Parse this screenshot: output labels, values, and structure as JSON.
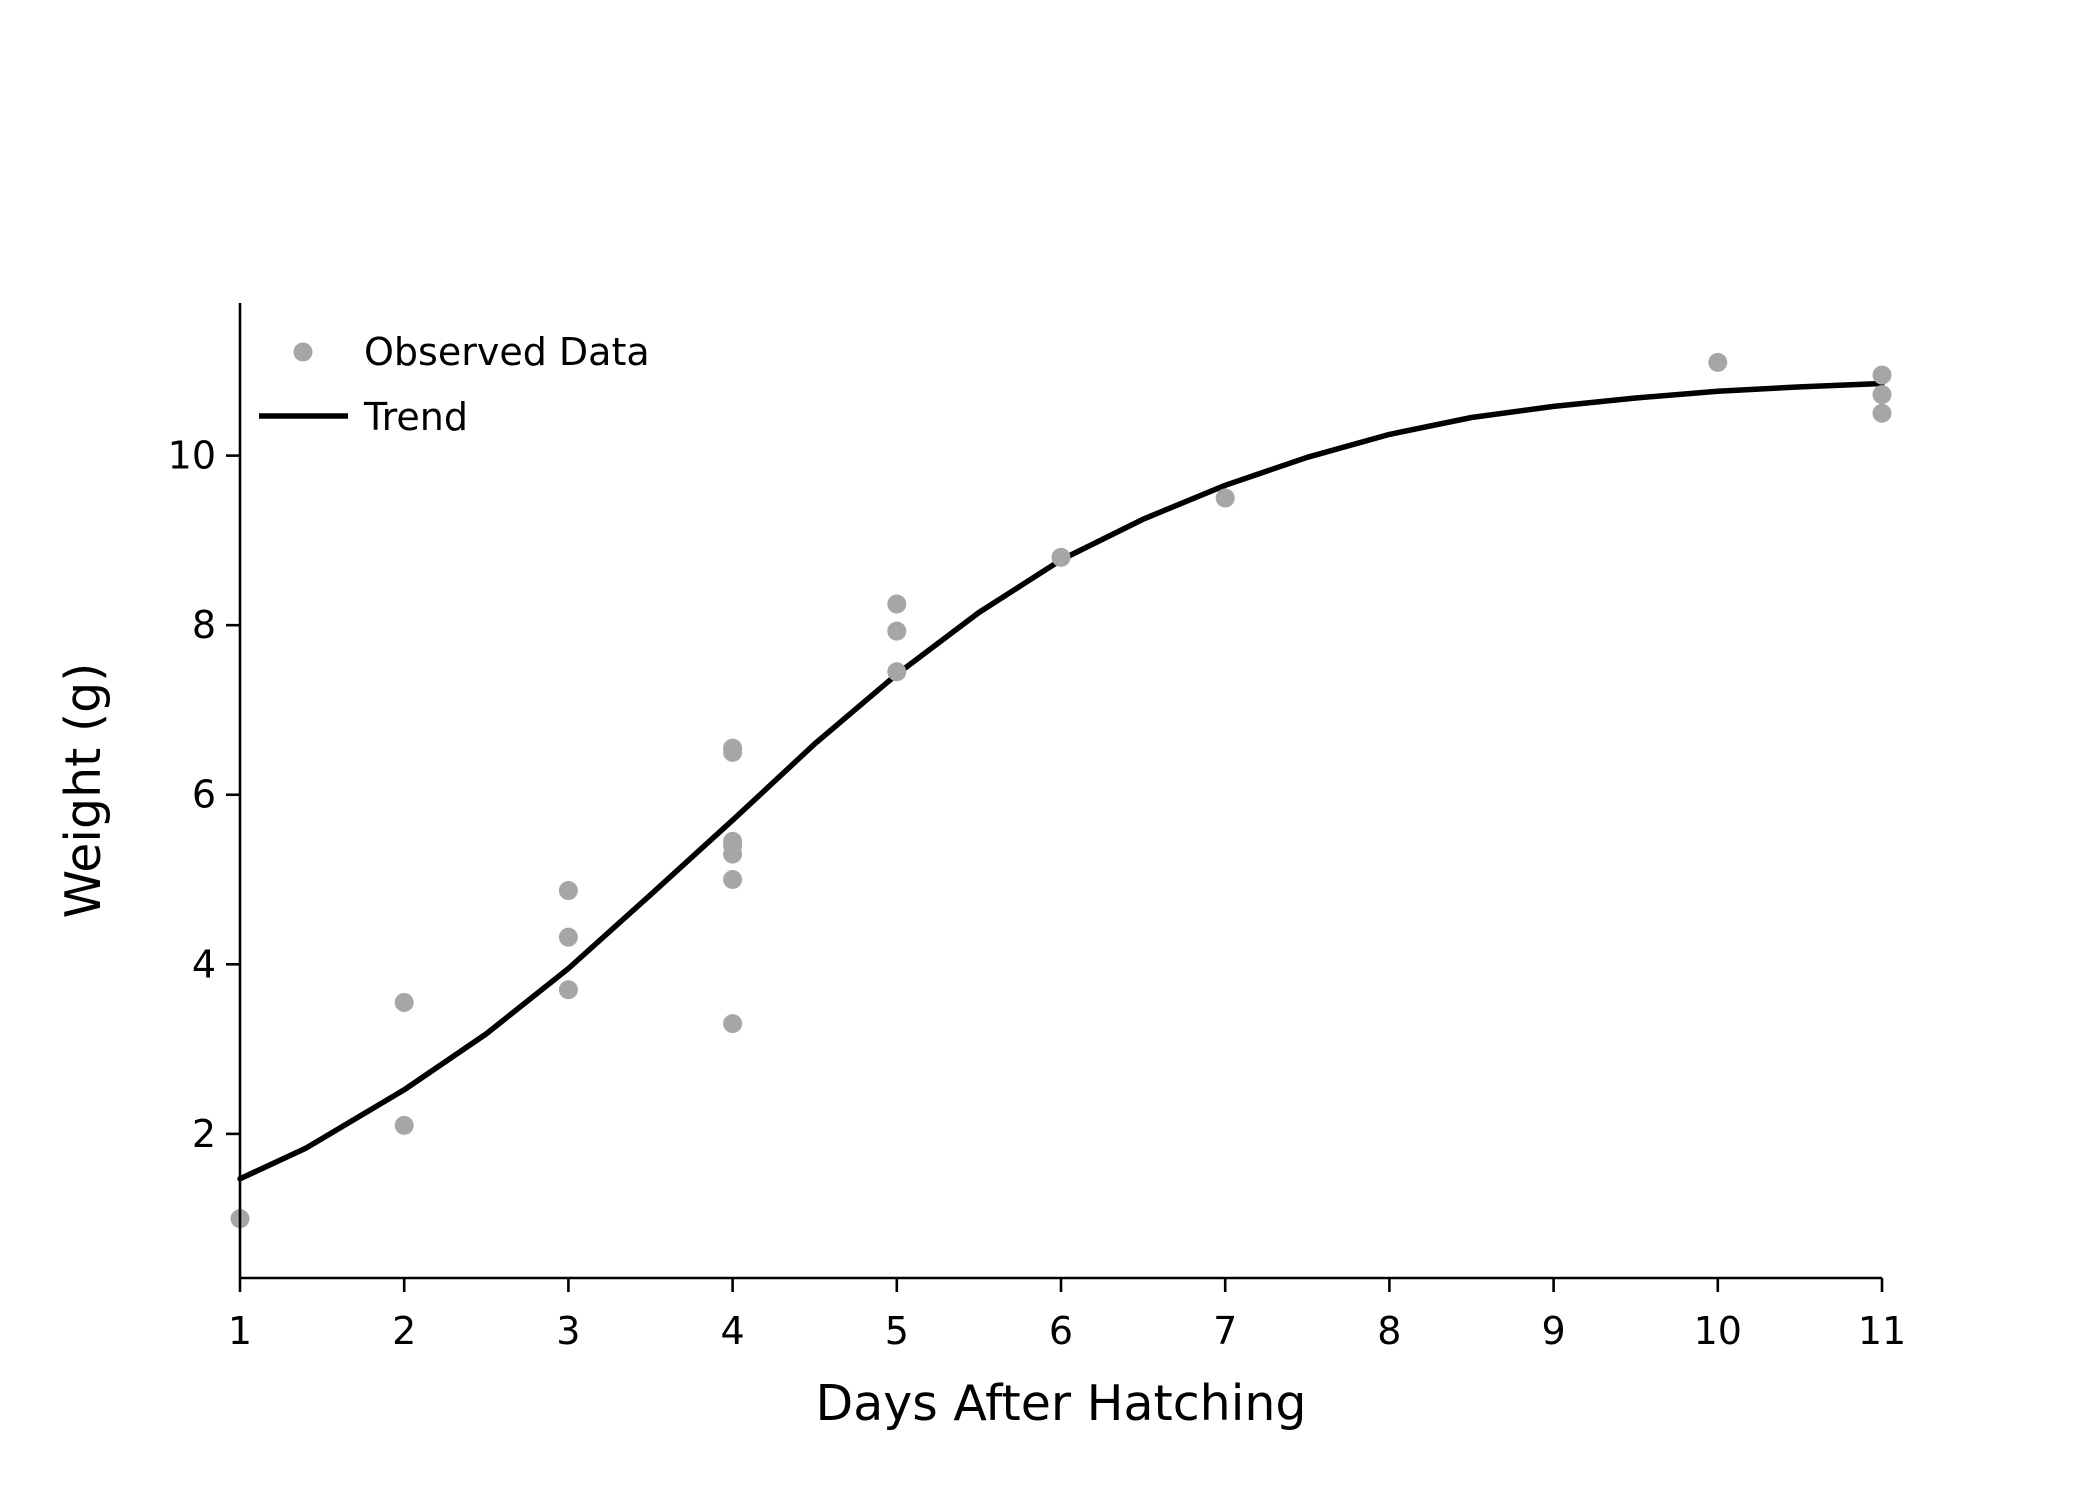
{
  "chart_data": {
    "type": "scatter",
    "title": "",
    "xlabel": "Days After Hatching",
    "ylabel": "Weight (g)",
    "xlim": [
      1,
      11
    ],
    "ylim": [
      0.3,
      11.8
    ],
    "x_ticks": [
      1,
      2,
      3,
      4,
      5,
      6,
      7,
      8,
      9,
      10,
      11
    ],
    "y_ticks": [
      2,
      4,
      6,
      8,
      10
    ],
    "grid": false,
    "legend_placement": "top-left",
    "series": [
      {
        "name": "Observed Data",
        "kind": "scatter",
        "color": "#a6a6a6",
        "points": [
          {
            "x": 1,
            "y": 1.0
          },
          {
            "x": 2,
            "y": 3.55
          },
          {
            "x": 2,
            "y": 2.1
          },
          {
            "x": 3,
            "y": 4.87
          },
          {
            "x": 3,
            "y": 4.32
          },
          {
            "x": 3,
            "y": 3.7
          },
          {
            "x": 4,
            "y": 6.55
          },
          {
            "x": 4,
            "y": 6.5
          },
          {
            "x": 4,
            "y": 5.45
          },
          {
            "x": 4,
            "y": 5.4
          },
          {
            "x": 4,
            "y": 5.3
          },
          {
            "x": 4,
            "y": 5.0
          },
          {
            "x": 4,
            "y": 3.3
          },
          {
            "x": 5,
            "y": 8.25
          },
          {
            "x": 5,
            "y": 7.93
          },
          {
            "x": 5,
            "y": 7.45
          },
          {
            "x": 6,
            "y": 8.8
          },
          {
            "x": 7,
            "y": 9.5
          },
          {
            "x": 10,
            "y": 11.1
          },
          {
            "x": 11,
            "y": 10.95
          },
          {
            "x": 11,
            "y": 10.72
          },
          {
            "x": 11,
            "y": 10.5
          }
        ]
      },
      {
        "name": "Trend",
        "kind": "line",
        "color": "#000000",
        "points": [
          {
            "x": 1.0,
            "y": 1.47
          },
          {
            "x": 1.4,
            "y": 1.83
          },
          {
            "x": 2.0,
            "y": 2.52
          },
          {
            "x": 2.5,
            "y": 3.18
          },
          {
            "x": 3.0,
            "y": 3.95
          },
          {
            "x": 3.5,
            "y": 4.82
          },
          {
            "x": 4.0,
            "y": 5.7
          },
          {
            "x": 4.5,
            "y": 6.6
          },
          {
            "x": 5.0,
            "y": 7.42
          },
          {
            "x": 5.5,
            "y": 8.15
          },
          {
            "x": 6.0,
            "y": 8.77
          },
          {
            "x": 6.5,
            "y": 9.25
          },
          {
            "x": 7.0,
            "y": 9.65
          },
          {
            "x": 7.5,
            "y": 9.98
          },
          {
            "x": 8.0,
            "y": 10.25
          },
          {
            "x": 8.5,
            "y": 10.45
          },
          {
            "x": 9.0,
            "y": 10.58
          },
          {
            "x": 9.5,
            "y": 10.68
          },
          {
            "x": 10.0,
            "y": 10.76
          },
          {
            "x": 10.5,
            "y": 10.81
          },
          {
            "x": 11.0,
            "y": 10.85
          }
        ]
      }
    ]
  }
}
